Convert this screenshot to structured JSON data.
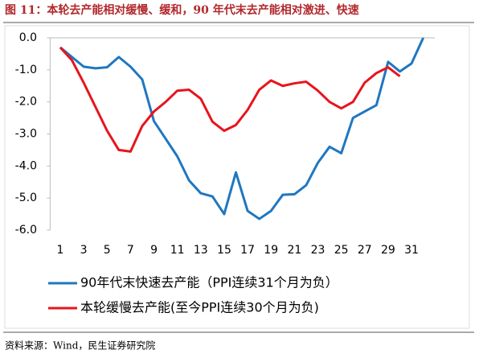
{
  "chart_data": {
    "type": "line",
    "title": "图 11：本轮去产能相对缓慢、缓和，90 年代末去产能相对激进、快速",
    "source": "资料来源：Wind，民生证券研究院",
    "x": [
      1,
      2,
      3,
      4,
      5,
      6,
      7,
      8,
      9,
      10,
      11,
      12,
      13,
      14,
      15,
      16,
      17,
      18,
      19,
      20,
      21,
      22,
      23,
      24,
      25,
      26,
      27,
      28,
      29,
      30,
      31,
      32
    ],
    "xlim": [
      0,
      33
    ],
    "xticks": [
      1,
      3,
      5,
      7,
      9,
      11,
      13,
      15,
      17,
      19,
      21,
      23,
      25,
      27,
      29,
      31
    ],
    "ylim": [
      -6,
      0
    ],
    "yticks": [
      {
        "value": 0,
        "label": "0.0"
      },
      {
        "value": -1,
        "label": "-1.0"
      },
      {
        "value": -2,
        "label": "-2.0"
      },
      {
        "value": -3,
        "label": "-3.0"
      },
      {
        "value": -4,
        "label": "-4.0"
      },
      {
        "value": -5,
        "label": "-5.0"
      },
      {
        "value": -6,
        "label": "-6.0"
      }
    ],
    "grid": false,
    "legend": "bottom",
    "series": [
      {
        "name": "90年代末快速去产能（PPI连续31个月为负）",
        "color": "#1f77c0",
        "values": [
          -0.3,
          -0.6,
          -0.9,
          -0.95,
          -0.92,
          -0.6,
          -0.9,
          -1.3,
          -2.6,
          -3.15,
          -3.7,
          -4.45,
          -4.85,
          -4.95,
          -5.5,
          -4.2,
          -5.4,
          -5.65,
          -5.4,
          -4.9,
          -4.88,
          -4.6,
          -3.9,
          -3.4,
          -3.6,
          -2.5,
          -2.3,
          -2.1,
          -0.75,
          -1.05,
          -0.8,
          0.0
        ]
      },
      {
        "name": "本轮缓慢去产能(至今PPI连续30个月为负)",
        "color": "#e8141c",
        "values": [
          -0.3,
          -0.7,
          -1.4,
          -2.15,
          -2.9,
          -3.5,
          -3.55,
          -2.75,
          -2.3,
          -2.0,
          -1.65,
          -1.62,
          -1.9,
          -2.62,
          -2.9,
          -2.72,
          -2.25,
          -1.62,
          -1.33,
          -1.5,
          -1.42,
          -1.37,
          -1.65,
          -2.0,
          -2.2,
          -2.0,
          -1.4,
          -1.1,
          -0.92,
          -1.2,
          null,
          null
        ]
      }
    ]
  }
}
